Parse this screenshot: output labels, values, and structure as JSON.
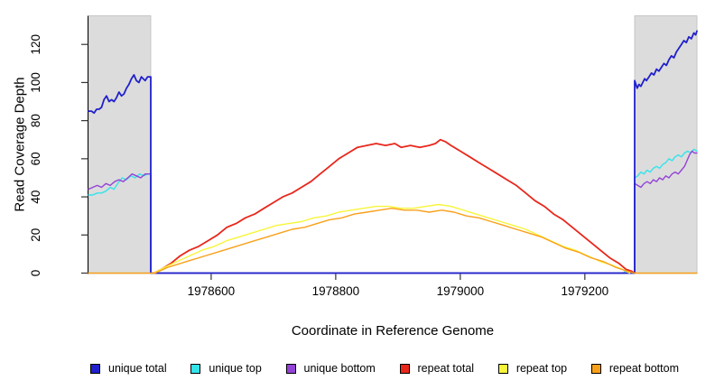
{
  "chart_data": {
    "type": "line",
    "title": "",
    "xlabel": "Coordinate in Reference Genome",
    "ylabel": "Read Coverage Depth",
    "x_domain": [
      1978403,
      1979380
    ],
    "y_domain": [
      0,
      135
    ],
    "x_ticks": [
      1978600,
      1978800,
      1979000,
      1979200
    ],
    "y_ticks": [
      0,
      20,
      40,
      60,
      80,
      100,
      120
    ],
    "grid": false,
    "legend_position": "bottom",
    "shaded_region_color": "#dcdcdc",
    "shaded_regions": [
      {
        "x0": 1978403,
        "x1": 1978503
      },
      {
        "x0": 1979280,
        "x1": 1979380
      }
    ],
    "series": [
      {
        "name": "unique total",
        "color": "#2020cc",
        "width": 1.8,
        "points": [
          [
            1978403,
            85
          ],
          [
            1978408,
            85
          ],
          [
            1978412,
            84
          ],
          [
            1978416,
            86
          ],
          [
            1978420,
            86
          ],
          [
            1978424,
            87
          ],
          [
            1978428,
            91
          ],
          [
            1978432,
            93
          ],
          [
            1978436,
            90
          ],
          [
            1978440,
            91
          ],
          [
            1978444,
            90
          ],
          [
            1978448,
            92
          ],
          [
            1978452,
            95
          ],
          [
            1978456,
            93
          ],
          [
            1978460,
            94
          ],
          [
            1978464,
            97
          ],
          [
            1978468,
            99
          ],
          [
            1978472,
            102
          ],
          [
            1978476,
            104
          ],
          [
            1978480,
            101
          ],
          [
            1978484,
            100
          ],
          [
            1978488,
            103
          ],
          [
            1978491,
            102
          ],
          [
            1978494,
            101
          ],
          [
            1978498,
            103
          ],
          [
            1978503,
            103
          ],
          [
            1978503,
            0
          ],
          [
            1979280,
            0
          ],
          [
            1979280,
            101
          ],
          [
            1979284,
            97
          ],
          [
            1979287,
            99
          ],
          [
            1979290,
            98
          ],
          [
            1979293,
            100
          ],
          [
            1979296,
            102
          ],
          [
            1979299,
            101
          ],
          [
            1979303,
            103
          ],
          [
            1979307,
            105
          ],
          [
            1979311,
            104
          ],
          [
            1979315,
            107
          ],
          [
            1979319,
            106
          ],
          [
            1979323,
            108
          ],
          [
            1979327,
            110
          ],
          [
            1979331,
            109
          ],
          [
            1979335,
            112
          ],
          [
            1979339,
            114
          ],
          [
            1979343,
            113
          ],
          [
            1979347,
            116
          ],
          [
            1979351,
            118
          ],
          [
            1979355,
            120
          ],
          [
            1979359,
            122
          ],
          [
            1979363,
            121
          ],
          [
            1979367,
            124
          ],
          [
            1979371,
            123
          ],
          [
            1979375,
            126
          ],
          [
            1979378,
            125
          ],
          [
            1979380,
            127
          ]
        ]
      },
      {
        "name": "unique top",
        "color": "#35e3ea",
        "width": 1.4,
        "points": [
          [
            1978403,
            41
          ],
          [
            1978410,
            41
          ],
          [
            1978417,
            42
          ],
          [
            1978424,
            42
          ],
          [
            1978431,
            43
          ],
          [
            1978438,
            45
          ],
          [
            1978444,
            44
          ],
          [
            1978450,
            47
          ],
          [
            1978457,
            50
          ],
          [
            1978464,
            49
          ],
          [
            1978471,
            51
          ],
          [
            1978478,
            50
          ],
          [
            1978485,
            52
          ],
          [
            1978492,
            51
          ],
          [
            1978498,
            52
          ],
          [
            1978503,
            52
          ],
          [
            1978503,
            0
          ],
          [
            1979262,
            0
          ],
          [
            1979267,
            2
          ],
          [
            1979273,
            1
          ],
          [
            1979280,
            0
          ],
          [
            1979280,
            50
          ],
          [
            1979285,
            51
          ],
          [
            1979290,
            53
          ],
          [
            1979295,
            52
          ],
          [
            1979300,
            54
          ],
          [
            1979305,
            53
          ],
          [
            1979310,
            55
          ],
          [
            1979315,
            56
          ],
          [
            1979320,
            55
          ],
          [
            1979325,
            57
          ],
          [
            1979330,
            58
          ],
          [
            1979335,
            60
          ],
          [
            1979340,
            59
          ],
          [
            1979345,
            61
          ],
          [
            1979350,
            62
          ],
          [
            1979355,
            61
          ],
          [
            1979360,
            63
          ],
          [
            1979365,
            64
          ],
          [
            1979370,
            63
          ],
          [
            1979375,
            65
          ],
          [
            1979380,
            64
          ]
        ]
      },
      {
        "name": "unique bottom",
        "color": "#9343d6",
        "width": 1.4,
        "points": [
          [
            1978403,
            44
          ],
          [
            1978410,
            45
          ],
          [
            1978417,
            46
          ],
          [
            1978424,
            45
          ],
          [
            1978431,
            47
          ],
          [
            1978438,
            46
          ],
          [
            1978445,
            48
          ],
          [
            1978452,
            49
          ],
          [
            1978459,
            48
          ],
          [
            1978466,
            50
          ],
          [
            1978473,
            52
          ],
          [
            1978480,
            51
          ],
          [
            1978487,
            50
          ],
          [
            1978494,
            52
          ],
          [
            1978503,
            52
          ],
          [
            1978503,
            0
          ],
          [
            1979280,
            0
          ],
          [
            1979280,
            47
          ],
          [
            1979285,
            46
          ],
          [
            1979290,
            45
          ],
          [
            1979295,
            47
          ],
          [
            1979300,
            48
          ],
          [
            1979305,
            47
          ],
          [
            1979310,
            49
          ],
          [
            1979315,
            48
          ],
          [
            1979320,
            50
          ],
          [
            1979325,
            49
          ],
          [
            1979330,
            51
          ],
          [
            1979335,
            50
          ],
          [
            1979340,
            52
          ],
          [
            1979345,
            53
          ],
          [
            1979350,
            52
          ],
          [
            1979355,
            54
          ],
          [
            1979360,
            56
          ],
          [
            1979364,
            59
          ],
          [
            1979368,
            62
          ],
          [
            1979372,
            64
          ],
          [
            1979376,
            63
          ],
          [
            1979380,
            63
          ]
        ]
      },
      {
        "name": "repeat total",
        "color": "#e8271c",
        "width": 1.8,
        "points": [
          [
            1978508,
            0
          ],
          [
            1978520,
            2
          ],
          [
            1978535,
            5
          ],
          [
            1978550,
            9
          ],
          [
            1978565,
            12
          ],
          [
            1978580,
            14
          ],
          [
            1978595,
            17
          ],
          [
            1978610,
            20
          ],
          [
            1978625,
            24
          ],
          [
            1978640,
            26
          ],
          [
            1978655,
            29
          ],
          [
            1978670,
            31
          ],
          [
            1978685,
            34
          ],
          [
            1978700,
            37
          ],
          [
            1978715,
            40
          ],
          [
            1978730,
            42
          ],
          [
            1978745,
            45
          ],
          [
            1978760,
            48
          ],
          [
            1978775,
            52
          ],
          [
            1978790,
            56
          ],
          [
            1978805,
            60
          ],
          [
            1978820,
            63
          ],
          [
            1978835,
            66
          ],
          [
            1978850,
            67
          ],
          [
            1978865,
            68
          ],
          [
            1978880,
            67
          ],
          [
            1978895,
            68
          ],
          [
            1978905,
            66
          ],
          [
            1978920,
            67
          ],
          [
            1978935,
            66
          ],
          [
            1978950,
            67
          ],
          [
            1978960,
            68
          ],
          [
            1978968,
            70
          ],
          [
            1978976,
            69
          ],
          [
            1978985,
            67
          ],
          [
            1979000,
            64
          ],
          [
            1979015,
            61
          ],
          [
            1979030,
            58
          ],
          [
            1979045,
            55
          ],
          [
            1979060,
            52
          ],
          [
            1979075,
            49
          ],
          [
            1979090,
            46
          ],
          [
            1979105,
            42
          ],
          [
            1979120,
            38
          ],
          [
            1979135,
            35
          ],
          [
            1979150,
            31
          ],
          [
            1979165,
            28
          ],
          [
            1979180,
            24
          ],
          [
            1979195,
            20
          ],
          [
            1979210,
            16
          ],
          [
            1979225,
            12
          ],
          [
            1979240,
            8
          ],
          [
            1979255,
            5
          ],
          [
            1979266,
            2
          ],
          [
            1979275,
            1
          ],
          [
            1979280,
            0
          ]
        ]
      },
      {
        "name": "repeat top",
        "color": "#f7f53a",
        "width": 1.4,
        "points": [
          [
            1978508,
            0
          ],
          [
            1978525,
            3
          ],
          [
            1978545,
            6
          ],
          [
            1978565,
            9
          ],
          [
            1978585,
            12
          ],
          [
            1978605,
            14
          ],
          [
            1978625,
            17
          ],
          [
            1978645,
            19
          ],
          [
            1978665,
            21
          ],
          [
            1978685,
            23
          ],
          [
            1978705,
            25
          ],
          [
            1978725,
            26
          ],
          [
            1978745,
            27
          ],
          [
            1978765,
            29
          ],
          [
            1978785,
            30
          ],
          [
            1978805,
            32
          ],
          [
            1978825,
            33
          ],
          [
            1978845,
            34
          ],
          [
            1978865,
            35
          ],
          [
            1978885,
            35
          ],
          [
            1978905,
            34
          ],
          [
            1978925,
            34
          ],
          [
            1978945,
            35
          ],
          [
            1978965,
            36
          ],
          [
            1978985,
            35
          ],
          [
            1979005,
            33
          ],
          [
            1979025,
            31
          ],
          [
            1979045,
            29
          ],
          [
            1979065,
            27
          ],
          [
            1979085,
            25
          ],
          [
            1979105,
            23
          ],
          [
            1979125,
            20
          ],
          [
            1979145,
            17
          ],
          [
            1979165,
            14
          ],
          [
            1979185,
            12
          ],
          [
            1979205,
            9
          ],
          [
            1979225,
            6
          ],
          [
            1979245,
            4
          ],
          [
            1979260,
            2
          ],
          [
            1979272,
            0
          ]
        ]
      },
      {
        "name": "repeat bottom",
        "color": "#f9a01b",
        "width": 1.4,
        "points": [
          [
            1978403,
            0
          ],
          [
            1978510,
            0
          ],
          [
            1978530,
            3
          ],
          [
            1978550,
            5
          ],
          [
            1978570,
            7
          ],
          [
            1978590,
            9
          ],
          [
            1978610,
            11
          ],
          [
            1978630,
            13
          ],
          [
            1978650,
            15
          ],
          [
            1978670,
            17
          ],
          [
            1978690,
            19
          ],
          [
            1978710,
            21
          ],
          [
            1978730,
            23
          ],
          [
            1978750,
            24
          ],
          [
            1978770,
            26
          ],
          [
            1978790,
            28
          ],
          [
            1978810,
            29
          ],
          [
            1978830,
            31
          ],
          [
            1978850,
            32
          ],
          [
            1978870,
            33
          ],
          [
            1978890,
            34
          ],
          [
            1978910,
            33
          ],
          [
            1978930,
            33
          ],
          [
            1978950,
            32
          ],
          [
            1978970,
            33
          ],
          [
            1978990,
            32
          ],
          [
            1979010,
            30
          ],
          [
            1979030,
            29
          ],
          [
            1979050,
            27
          ],
          [
            1979070,
            25
          ],
          [
            1979090,
            23
          ],
          [
            1979110,
            21
          ],
          [
            1979130,
            19
          ],
          [
            1979150,
            16
          ],
          [
            1979170,
            13
          ],
          [
            1979190,
            11
          ],
          [
            1979210,
            8
          ],
          [
            1979230,
            6
          ],
          [
            1979250,
            3
          ],
          [
            1979268,
            1
          ],
          [
            1979280,
            0
          ],
          [
            1979380,
            0
          ]
        ]
      }
    ]
  }
}
